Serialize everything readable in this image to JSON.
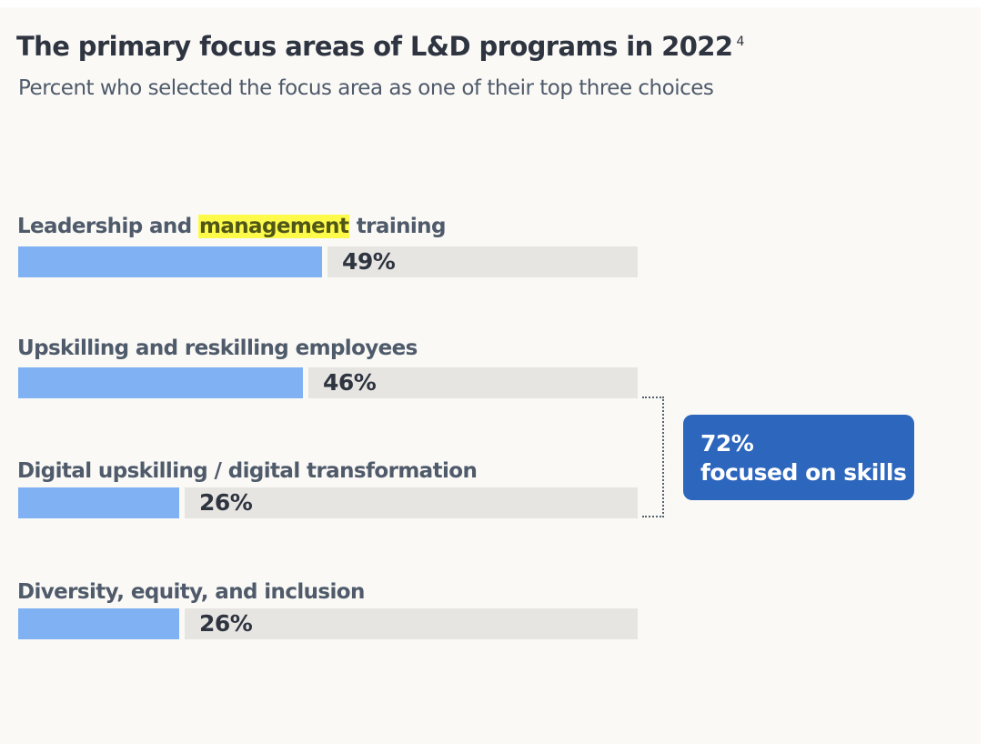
{
  "chart_data": {
    "type": "bar",
    "orientation": "horizontal",
    "title": "The primary focus areas of L&D programs in 2022",
    "title_footnote": "4",
    "subtitle": "Percent who selected the focus area as one of their top three choices",
    "categories": [
      "Leadership and management training",
      "Upskilling and reskilling employees",
      "Digital upskilling / digital transformation",
      "Diversity, equity, and inclusion"
    ],
    "values": [
      49,
      46,
      26,
      26
    ],
    "value_labels": [
      "49%",
      "46%",
      "26%",
      "26%"
    ],
    "unit": "%",
    "xlim": [
      0,
      100
    ],
    "highlighted_word": {
      "category_index": 0,
      "word": "management"
    },
    "annotation": {
      "brackets_categories": [
        1,
        2
      ],
      "value": "72%",
      "text": "focused on skills"
    },
    "grid": false,
    "legend": "none"
  },
  "labels": [
    {
      "pre": "Leadership and ",
      "hl": "management",
      "post": " training"
    },
    {
      "pre": "Upskilling and reskilling employees",
      "hl": "",
      "post": ""
    },
    {
      "pre": "Digital upskilling / digital transformation",
      "hl": "",
      "post": ""
    },
    {
      "pre": "Diversity, equity, and inclusion",
      "hl": "",
      "post": ""
    }
  ],
  "colors": {
    "bar": "#7fb1f3",
    "track": "#e7e5e1",
    "callout": "#2d66bd",
    "highlight": "#fdfa4a",
    "background": "#faf9f6"
  }
}
